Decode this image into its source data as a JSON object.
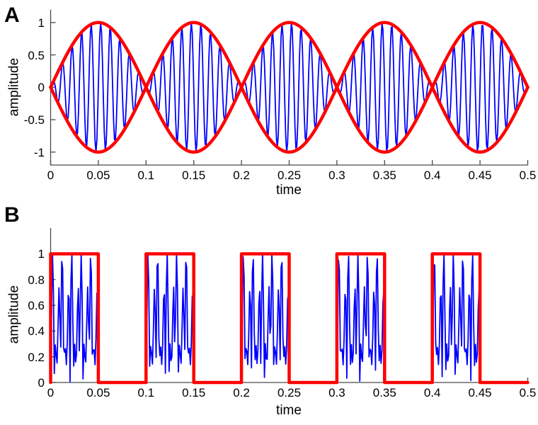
{
  "figure": {
    "background": "#ffffff",
    "colors": {
      "signal_blue": "#0000ff",
      "envelope_red": "#ff0000",
      "axis": "#4a4a4a",
      "text": "#000000"
    }
  },
  "chart_data": [
    {
      "type": "line",
      "panel_label": "A",
      "xlabel": "time",
      "ylabel": "amplitude",
      "xlim": [
        0,
        0.5
      ],
      "ylim": [
        -1.2,
        1.2
      ],
      "grid": false,
      "legend": null,
      "x_ticks": [
        0,
        0.05,
        0.1,
        0.15,
        0.2,
        0.25,
        0.3,
        0.35,
        0.4,
        0.45,
        0.5
      ],
      "x_tick_labels": [
        "0",
        "0.05",
        "0.1",
        "0.15",
        "0.2",
        "0.25",
        "0.3",
        "0.35",
        "0.4",
        "0.45",
        "0.5"
      ],
      "y_ticks": [
        -1,
        -0.5,
        0,
        0.5,
        1
      ],
      "y_tick_labels": [
        "-1",
        "-0.5",
        "0",
        "0.5",
        "1"
      ],
      "series": [
        {
          "name": "modulated-signal",
          "color": "#0000ff",
          "width": 1.8,
          "generator": {
            "kind": "am_product",
            "carrier_freq": 100,
            "mod_freq": 5,
            "t_start": 0,
            "t_end": 0.5,
            "dt": 0.00097
          }
        },
        {
          "name": "envelope-upper",
          "color": "#ff0000",
          "width": 4.5,
          "generator": {
            "kind": "abs_sin",
            "freq": 5,
            "sign": 1,
            "t_start": 0,
            "t_end": 0.5,
            "dt": 0.002
          }
        },
        {
          "name": "envelope-lower",
          "color": "#ff0000",
          "width": 4.5,
          "generator": {
            "kind": "abs_sin",
            "freq": 5,
            "sign": -1,
            "t_start": 0,
            "t_end": 0.5,
            "dt": 0.002
          }
        }
      ]
    },
    {
      "type": "line",
      "panel_label": "B",
      "xlabel": "time",
      "ylabel": "amplitude",
      "xlim": [
        0,
        0.5
      ],
      "ylim": [
        0,
        1.2
      ],
      "grid": false,
      "legend": null,
      "x_ticks": [
        0,
        0.05,
        0.1,
        0.15,
        0.2,
        0.25,
        0.3,
        0.35,
        0.4,
        0.45,
        0.5
      ],
      "x_tick_labels": [
        "0",
        "0.05",
        "0.1",
        "0.15",
        "0.2",
        "0.25",
        "0.3",
        "0.35",
        "0.4",
        "0.45",
        "0.5"
      ],
      "y_ticks": [
        0,
        0.2,
        0.4,
        0.6,
        0.8,
        1
      ],
      "y_tick_labels": [
        "0",
        "0.2",
        "0.4",
        "0.6",
        "0.8",
        "1"
      ],
      "series": [
        {
          "name": "pulsed-signal",
          "color": "#0000ff",
          "width": 1.8,
          "generator": {
            "kind": "gated_abs_sum",
            "components": [
              {
                "freq": 100,
                "amp": 0.6,
                "phase": 0
              },
              {
                "freq": 200,
                "amp": 0.4,
                "phase": -0.8
              }
            ],
            "scale": 1.05,
            "clamp_max": 1,
            "gate_period": 0.1,
            "gate_duty": 0.5,
            "t_start": 0,
            "t_end": 0.5,
            "dt": 0.00097
          }
        },
        {
          "name": "pulse-envelope",
          "color": "#ff0000",
          "width": 4.5,
          "generator": {
            "kind": "pulse_train",
            "period": 0.1,
            "duty": 0.5,
            "high": 1,
            "low": 0,
            "t_start": 0,
            "t_end": 0.5
          }
        }
      ]
    }
  ]
}
